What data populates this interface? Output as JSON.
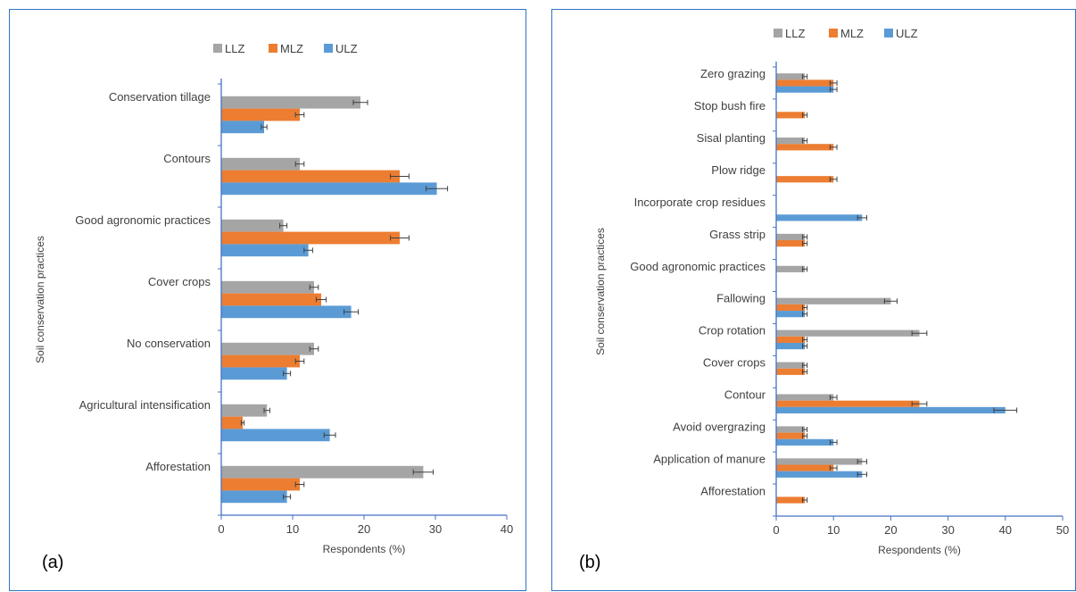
{
  "colors": {
    "LLZ": "#a5a5a5",
    "MLZ": "#ed7d31",
    "ULZ": "#5b9bd5",
    "axis": "#4472c4",
    "error": "#404040"
  },
  "chart_data": [
    {
      "panel_label": "(a)",
      "type": "bar",
      "orientation": "horizontal",
      "xlabel": "Respondents (%)",
      "ylabel": "Soil conservation practices",
      "xlim": [
        0,
        40
      ],
      "xticks": [
        0,
        10,
        20,
        30,
        40
      ],
      "grid": false,
      "legend_position": "top",
      "categories": [
        "Conservation tillage",
        "Contours",
        "Good agronomic practices",
        "Cover crops",
        "No conservation",
        "Agricultural intensification",
        "Afforestation"
      ],
      "series": [
        {
          "name": "LLZ",
          "values": [
            19.5,
            11,
            8.7,
            13,
            13,
            6.4,
            28.3
          ],
          "errors": [
            1.0,
            0.6,
            0.5,
            0.6,
            0.6,
            0.4,
            1.4
          ]
        },
        {
          "name": "MLZ",
          "values": [
            11,
            25,
            25,
            14,
            11,
            3,
            11
          ],
          "errors": [
            0.6,
            1.3,
            1.3,
            0.7,
            0.6,
            0.2,
            0.6
          ]
        },
        {
          "name": "ULZ",
          "values": [
            6,
            30.2,
            12.2,
            18.2,
            9.2,
            15.2,
            9.2
          ],
          "errors": [
            0.4,
            1.5,
            0.6,
            1.0,
            0.5,
            0.8,
            0.5
          ]
        }
      ]
    },
    {
      "panel_label": "(b)",
      "type": "bar",
      "orientation": "horizontal",
      "xlabel": "Respondents (%)",
      "ylabel": "Soil conservation practices",
      "xlim": [
        0,
        50
      ],
      "xticks": [
        0,
        10,
        20,
        30,
        40,
        50
      ],
      "grid": false,
      "legend_position": "top",
      "categories": [
        "Zero grazing",
        "Stop bush fire",
        "Sisal planting",
        "Plow ridge",
        "Incorporate crop residues",
        "Grass strip",
        "Good agronomic practices",
        "Fallowing",
        "Crop rotation",
        "Cover crops",
        "Contour",
        "Avoid overgrazing",
        "Application of manure",
        "Afforestation"
      ],
      "series": [
        {
          "name": "LLZ",
          "values": [
            5,
            0,
            5,
            0,
            0,
            5,
            5,
            20,
            25,
            5,
            10,
            5,
            15,
            0
          ],
          "errors": [
            0.4,
            0,
            0.4,
            0,
            0,
            0.4,
            0.4,
            1.1,
            1.3,
            0.4,
            0.6,
            0.4,
            0.8,
            0
          ]
        },
        {
          "name": "MLZ",
          "values": [
            10,
            5,
            10,
            10,
            0,
            5,
            0,
            5,
            5,
            5,
            25,
            5,
            10,
            5
          ],
          "errors": [
            0.6,
            0.4,
            0.6,
            0.6,
            0,
            0.4,
            0,
            0.4,
            0.4,
            0.4,
            1.3,
            0.4,
            0.6,
            0.4
          ]
        },
        {
          "name": "ULZ",
          "values": [
            10,
            0,
            0,
            0,
            15,
            0,
            0,
            5,
            5,
            0,
            40,
            10,
            15,
            0
          ],
          "errors": [
            0.6,
            0,
            0,
            0,
            0.8,
            0,
            0,
            0.4,
            0.4,
            0,
            2.0,
            0.6,
            0.8,
            0
          ]
        }
      ]
    }
  ]
}
